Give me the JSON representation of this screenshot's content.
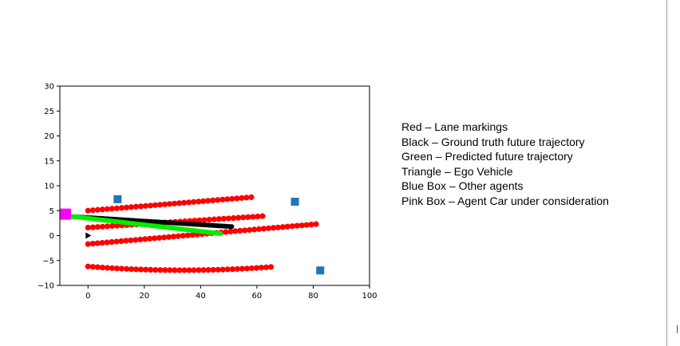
{
  "chart_data": {
    "type": "scatter",
    "title": "",
    "xlabel": "",
    "ylabel": "",
    "xlim": [
      -10,
      100
    ],
    "ylim": [
      -10,
      30
    ],
    "xticks": [
      0,
      20,
      40,
      60,
      80,
      100
    ],
    "yticks": [
      -10,
      -5,
      0,
      5,
      10,
      15,
      20,
      25,
      30
    ],
    "xtick_labels": [
      "0",
      "20",
      "40",
      "60",
      "80",
      "100"
    ],
    "ytick_labels": [
      "−10",
      "−5",
      "0",
      "5",
      "10",
      "15",
      "20",
      "25",
      "30"
    ],
    "grid": false,
    "series": [
      {
        "name": "Red – Lane markings",
        "color": "#ff0000",
        "marker": "circle",
        "lines": [
          {
            "x_start": 0,
            "x_end": 58,
            "y_start": 5.0,
            "y_end": 7.7
          },
          {
            "x_start": 0,
            "x_end": 62,
            "y_start": 1.6,
            "y_end": 3.9
          },
          {
            "x_start": 0,
            "x_end": 81,
            "y_start": -1.7,
            "y_end": 2.3
          },
          {
            "x_start": 0,
            "x_end": 65,
            "y_start": -6.2,
            "y_end": -6.3,
            "sag": -0.7
          }
        ]
      },
      {
        "name": "Black – Ground truth future trajectory",
        "color": "#000000",
        "marker": "circle",
        "x_start": -8,
        "x_end": 51,
        "y_start": 3.9,
        "y_end": 1.8
      },
      {
        "name": "Green – Predicted future trajectory",
        "color": "#00ee00",
        "marker": "circle",
        "x_start": -8,
        "x_end": 47,
        "y_start": 4.0,
        "y_end": 0.4
      }
    ],
    "agents": [
      {
        "x": 10.5,
        "y": 7.3
      },
      {
        "x": 73.5,
        "y": 6.8
      },
      {
        "x": 82.5,
        "y": -7.0
      }
    ],
    "agent_color": "#1f77b4",
    "ego": {
      "x": 0,
      "y": 0,
      "color": "#000000"
    },
    "target_agent": {
      "x": -8,
      "y": 4.3,
      "color": "#ff00ff"
    }
  },
  "legend": {
    "lines": [
      "Red – Lane markings",
      "Black – Ground truth future trajectory",
      "Green – Predicted future trajectory",
      "Triangle – Ego Vehicle",
      "Blue Box – Other agents",
      "Pink Box – Agent Car under consideration"
    ]
  }
}
